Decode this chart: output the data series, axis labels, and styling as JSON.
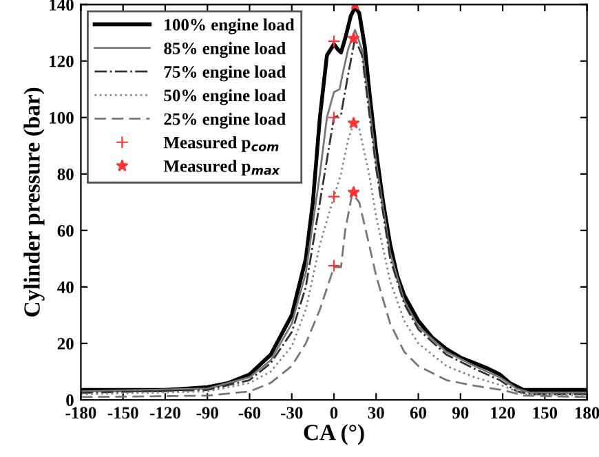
{
  "chart_data": {
    "type": "line",
    "xlabel": "CA (°)",
    "ylabel": "Cylinder pressure (bar)",
    "xlim": [
      -180,
      180
    ],
    "ylim": [
      0,
      140
    ],
    "xticks": [
      -180,
      -150,
      -120,
      -90,
      -60,
      -30,
      0,
      30,
      60,
      90,
      120,
      150,
      180
    ],
    "yticks": [
      0,
      20,
      40,
      60,
      80,
      100,
      120,
      140
    ],
    "grid": false,
    "legend": "top left",
    "marker": "none",
    "series": [
      {
        "name": "100% engine load",
        "color": "#000000",
        "line_style": "solid",
        "x": [
          -180,
          -120,
          -90,
          -75,
          -60,
          -45,
          -30,
          -20,
          -15,
          -10,
          -5,
          0,
          3,
          5,
          8,
          12,
          15,
          18,
          22,
          25,
          30,
          35,
          40,
          45,
          50,
          60,
          70,
          80,
          90,
          100,
          110,
          118,
          125,
          135,
          140,
          180
        ],
        "values": [
          3.5,
          3.5,
          4.5,
          6,
          9,
          16,
          30,
          50,
          70,
          100,
          122,
          126,
          124,
          123,
          128,
          136,
          139,
          137,
          125,
          110,
          88,
          70,
          55,
          44,
          37,
          28,
          22,
          18,
          15,
          13,
          11,
          9,
          6,
          3.5,
          3.5,
          3.5
        ]
      },
      {
        "name": "85% engine load",
        "color": "#777777",
        "line_style": "solid",
        "x": [
          -180,
          -90,
          -60,
          -45,
          -30,
          -20,
          -10,
          -5,
          0,
          4,
          6,
          10,
          15,
          20,
          25,
          30,
          40,
          50,
          60,
          80,
          100,
          118,
          130,
          140,
          180
        ],
        "values": [
          3,
          4,
          8,
          14,
          27,
          45,
          80,
          100,
          109,
          110,
          115,
          124,
          131,
          124,
          105,
          84,
          52,
          35,
          26,
          17,
          12,
          8,
          4,
          2.5,
          2.5
        ]
      },
      {
        "name": "75% engine load",
        "color": "#333333",
        "line_style": "dashdot",
        "x": [
          -180,
          -90,
          -60,
          -45,
          -30,
          -20,
          -10,
          0,
          5,
          10,
          15,
          20,
          25,
          30,
          40,
          50,
          60,
          80,
          100,
          118,
          130,
          140,
          180
        ],
        "values": [
          2.5,
          3.5,
          7,
          13,
          24,
          40,
          70,
          100,
          101,
          115,
          128,
          122,
          102,
          82,
          50,
          34,
          25,
          16,
          11,
          7,
          3,
          2,
          2
        ]
      },
      {
        "name": "50% engine load",
        "color": "#888888",
        "line_style": "dotted",
        "x": [
          -180,
          -90,
          -60,
          -45,
          -30,
          -20,
          -10,
          0,
          5,
          10,
          14,
          18,
          25,
          30,
          40,
          50,
          60,
          80,
          100,
          120,
          135,
          180
        ],
        "values": [
          2,
          3,
          6,
          10,
          19,
          32,
          55,
          72,
          80,
          92,
          98,
          96,
          80,
          65,
          42,
          28,
          20,
          12,
          8,
          5,
          2,
          1.5
        ]
      },
      {
        "name": "25% engine load",
        "color": "#777777",
        "line_style": "dashed",
        "x": [
          -180,
          -90,
          -60,
          -45,
          -30,
          -20,
          -10,
          0,
          5,
          8,
          13,
          18,
          25,
          30,
          40,
          50,
          60,
          80,
          100,
          120,
          135,
          180
        ],
        "values": [
          1,
          1.5,
          3,
          6,
          12,
          20,
          32,
          47,
          47,
          60,
          73,
          70,
          55,
          44,
          27,
          17,
          12,
          7,
          5,
          3.5,
          1.5,
          1
        ]
      },
      {
        "name": "Measured p$_{com}$",
        "type": "scatter",
        "marker": "cross",
        "color": "#ff3333",
        "x": [
          0,
          0,
          0,
          0
        ],
        "values": [
          127,
          100,
          72,
          47.5
        ]
      },
      {
        "name": "Measured p$_{max}$",
        "type": "scatter",
        "marker": "star",
        "color": "#ff3333",
        "x": [
          15,
          14,
          14,
          14
        ],
        "values": [
          140,
          128,
          98,
          73.5
        ]
      }
    ]
  }
}
